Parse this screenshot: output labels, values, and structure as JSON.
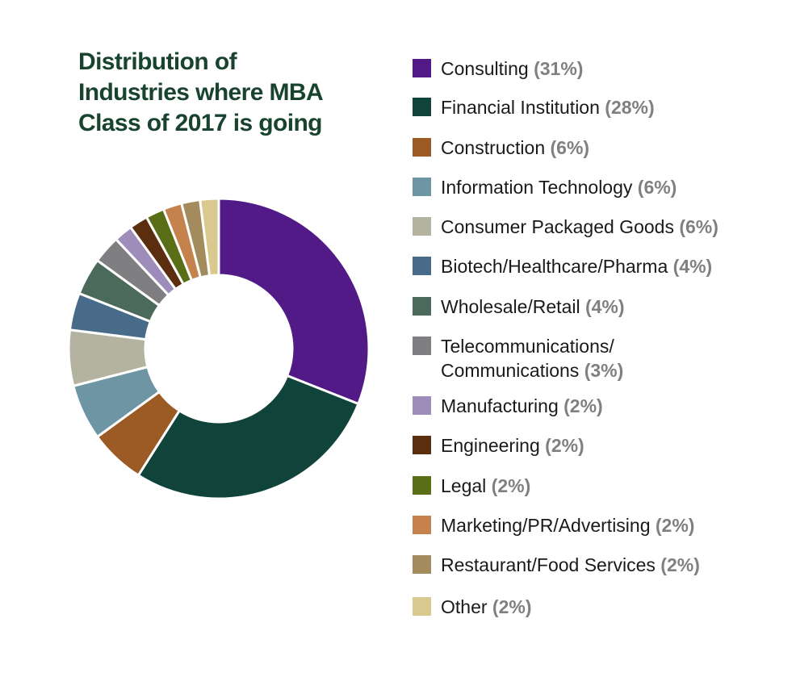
{
  "chart_data": {
    "type": "pie",
    "variant": "donut",
    "title": "Distribution of\nIndustries where MBA\nClass of 2017 is going",
    "legend_position": "right",
    "slices": [
      {
        "label": "Consulting",
        "value": 31,
        "pct_label": "(31%)",
        "color": "#521a87"
      },
      {
        "label": "Financial Institution",
        "value": 28,
        "pct_label": "(28%)",
        "color": "#10443a"
      },
      {
        "label": "Construction",
        "value": 6,
        "pct_label": "(6%)",
        "color": "#9c5a24"
      },
      {
        "label": "Information Technology",
        "value": 6,
        "pct_label": "(6%)",
        "color": "#6e95a3"
      },
      {
        "label": "Consumer Packaged Goods",
        "value": 6,
        "pct_label": "(6%)",
        "color": "#b3b3a0"
      },
      {
        "label": "Biotech/Healthcare/Pharma",
        "value": 4,
        "pct_label": "(4%)",
        "color": "#476b88"
      },
      {
        "label": "Wholesale/Retail",
        "value": 4,
        "pct_label": "(4%)",
        "color": "#4c6a5b"
      },
      {
        "label": "Telecommunications/\nCommunications",
        "value": 3,
        "pct_label": "(3%)",
        "color": "#7f7e80"
      },
      {
        "label": "Manufacturing",
        "value": 2,
        "pct_label": "(2%)",
        "color": "#9e8cba"
      },
      {
        "label": "Engineering",
        "value": 2,
        "pct_label": "(2%)",
        "color": "#5a2e0e"
      },
      {
        "label": "Legal",
        "value": 2,
        "pct_label": "(2%)",
        "color": "#5a6e17"
      },
      {
        "label": "Marketing/PR/Advertising",
        "value": 2,
        "pct_label": "(2%)",
        "color": "#c5824d"
      },
      {
        "label": "Restaurant/Food Services",
        "value": 2,
        "pct_label": "(2%)",
        "color": "#a38b5d"
      },
      {
        "label": "Other",
        "value": 2,
        "pct_label": "(2%)",
        "color": "#d9c98e"
      }
    ]
  }
}
